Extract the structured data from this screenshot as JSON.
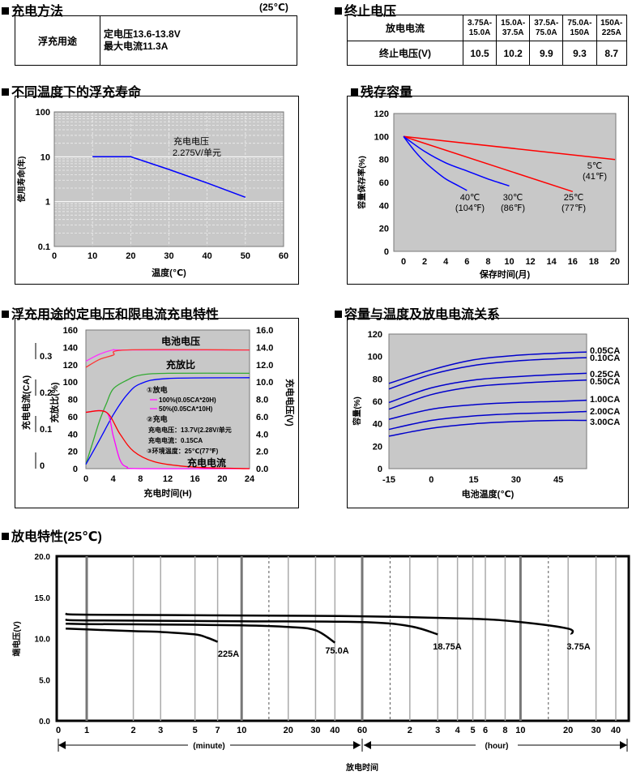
{
  "sections": {
    "charge_method": {
      "title": "充电方法",
      "temp": "(25℃)",
      "row_label": "浮充用途",
      "lines": [
        "定电压13.6-13.8V",
        "最大电流11.3A"
      ]
    },
    "cutoff": {
      "title": "终止电压",
      "row1_label": "放电电流",
      "row2_label": "终止电压(V)",
      "currents": [
        "3.75A-\n15.0A",
        "15.0A-\n37.5A",
        "37.5A-\n75.0A",
        "75.0A-\n150A",
        "150A-\n225A"
      ],
      "voltages": [
        "10.5",
        "10.2",
        "9.9",
        "9.3",
        "8.7"
      ]
    },
    "life": {
      "title": "不同温度下的浮充寿命"
    },
    "retention": {
      "title": "残存容量"
    },
    "charging": {
      "title": "浮充用途的定电压和限电流充电特性"
    },
    "capacity_temp": {
      "title": "容量与温度及放电电流关系"
    },
    "discharge": {
      "title": "放电特性(25℃)"
    }
  },
  "chart_data": [
    {
      "id": "life",
      "type": "line",
      "xlabel": "温度(℃)",
      "ylabel": "使用寿命(年)",
      "xlim": [
        0,
        60
      ],
      "ylim": [
        0.1,
        100
      ],
      "yscale": "log",
      "xticks": [
        "0",
        "10",
        "20",
        "30",
        "40",
        "50",
        "60"
      ],
      "yticks": [
        "0.1",
        "1",
        "10",
        "100"
      ],
      "annotations": [
        "充电电压",
        "2.275V/单元"
      ],
      "series": [
        {
          "color": "#0000ff",
          "x": [
            10,
            20,
            30,
            40,
            50
          ],
          "y": [
            10,
            10,
            5.2,
            2.6,
            1.25
          ]
        }
      ]
    },
    {
      "id": "retention",
      "type": "line",
      "xlabel": "保存时间(月)",
      "ylabel": "容量保存率(%)",
      "xlim": [
        0,
        21
      ],
      "ylim": [
        0,
        120
      ],
      "xticks": [
        "0",
        "2",
        "4",
        "6",
        "8",
        "10",
        "12",
        "14",
        "16",
        "18",
        "20"
      ],
      "yticks": [
        "0",
        "20",
        "40",
        "60",
        "80",
        "100",
        "120"
      ],
      "series": [
        {
          "name": "5℃\n(41℉)",
          "color": "#ff0000",
          "x": [
            0,
            20
          ],
          "y": [
            100,
            80
          ]
        },
        {
          "name": "25℃\n(77℉)",
          "color": "#ff0000",
          "x": [
            0,
            16
          ],
          "y": [
            100,
            52
          ]
        },
        {
          "name": "30℃\n(86℉)",
          "color": "#0000ff",
          "x": [
            0,
            2,
            4,
            6,
            8,
            10
          ],
          "y": [
            100,
            87,
            77,
            70,
            63,
            57
          ]
        },
        {
          "name": "40℃\n(104℉)",
          "color": "#0000ff",
          "x": [
            0,
            1,
            2,
            3,
            4,
            5,
            6
          ],
          "y": [
            100,
            88,
            78,
            70,
            63,
            58,
            53
          ]
        }
      ]
    },
    {
      "id": "charging",
      "type": "line",
      "xlabel": "充电时间(H)",
      "xlim": [
        0,
        24
      ],
      "xticks": [
        "0",
        "4",
        "8",
        "12",
        "16",
        "20",
        "24"
      ],
      "left_axis": {
        "label": "充放比(%)",
        "ticks": [
          "0",
          "20",
          "40",
          "60",
          "80",
          "100",
          "120",
          "140",
          "160"
        ]
      },
      "left_axis2": {
        "label": "充电电流(CA)",
        "ticks": [
          "0",
          "0.1",
          "0.2",
          "0.3"
        ]
      },
      "right_axis": {
        "label": "充电电压(V)",
        "ticks": [
          "0.0",
          "2.0",
          "4.0",
          "6.0",
          "8.0",
          "10.0",
          "12.0",
          "14.0",
          "16.0"
        ]
      },
      "labels": {
        "voltage": "电池电压",
        "ratio": "充放比",
        "current": "充电电流"
      },
      "legend": [
        "①放电",
        "100%(0.05CA*20H)",
        "50%(0.05CA*10H)",
        "②充电",
        "充电电压：13.7V(2.28V/单元",
        "充电电流：0.15CA",
        "③环境温度：25℃(77℉)"
      ],
      "series": [
        {
          "color": "#ff33ff",
          "x": [
            0,
            2,
            4,
            6,
            24
          ],
          "y_pct": [
            124,
            132,
            137,
            137,
            137
          ]
        },
        {
          "color": "#ff3333",
          "x": [
            0,
            2,
            4,
            6,
            24
          ],
          "y_pct": [
            117,
            126,
            131,
            137,
            137
          ]
        },
        {
          "color": "#33aa33",
          "x": [
            0,
            1,
            2,
            3,
            4,
            6,
            8,
            12,
            24
          ],
          "y_pct": [
            5,
            30,
            55,
            75,
            92,
            102,
            108,
            110,
            110
          ]
        },
        {
          "color": "#0000ff",
          "x": [
            0,
            2,
            4,
            6,
            8,
            12,
            24
          ],
          "y_pct": [
            5,
            33,
            62,
            85,
            98,
            104,
            105
          ]
        },
        {
          "color": "#ff00ff",
          "x": [
            0,
            3,
            4,
            5,
            6,
            8,
            24
          ],
          "y_pct": [
            65,
            65,
            38,
            10,
            2,
            0,
            0
          ]
        },
        {
          "color": "#ff0000",
          "x": [
            0,
            3,
            5,
            7,
            10,
            14,
            18,
            24
          ],
          "y_pct": [
            65,
            65,
            40,
            20,
            8,
            3,
            1,
            0
          ]
        }
      ]
    },
    {
      "id": "capacity_temp",
      "type": "line",
      "xlabel": "电池温度(℃)",
      "ylabel": "容量(%)",
      "xlim": [
        -15,
        55
      ],
      "ylim": [
        0,
        120
      ],
      "xticks": [
        "-15",
        "0",
        "15",
        "30",
        "45"
      ],
      "yticks": [
        "0",
        "20",
        "40",
        "60",
        "80",
        "100",
        "120"
      ],
      "series": [
        {
          "name": "0.05CA",
          "color": "#0000cc",
          "x": [
            -15,
            0,
            15,
            30,
            45,
            55
          ],
          "y": [
            76,
            88,
            97,
            101,
            103,
            104
          ]
        },
        {
          "name": "0.10CA",
          "color": "#0000cc",
          "x": [
            -15,
            0,
            15,
            30,
            45,
            55
          ],
          "y": [
            71,
            84,
            92,
            96,
            98,
            99
          ]
        },
        {
          "name": "0.25CA",
          "color": "#0000cc",
          "x": [
            -15,
            0,
            15,
            30,
            45,
            55
          ],
          "y": [
            59,
            72,
            79,
            82,
            84,
            85
          ]
        },
        {
          "name": "0.50CA",
          "color": "#0000cc",
          "x": [
            -15,
            0,
            15,
            30,
            45,
            55
          ],
          "y": [
            53,
            66,
            73,
            76,
            78,
            79
          ]
        },
        {
          "name": "1.00CA",
          "color": "#0000cc",
          "x": [
            -15,
            0,
            15,
            30,
            45,
            55
          ],
          "y": [
            44,
            53,
            57,
            59,
            60,
            61
          ]
        },
        {
          "name": "2.00CA",
          "color": "#0000cc",
          "x": [
            -15,
            0,
            15,
            30,
            45,
            55
          ],
          "y": [
            35,
            43,
            47,
            49,
            50,
            51
          ]
        },
        {
          "name": "3.00CA",
          "color": "#0000cc",
          "x": [
            -15,
            0,
            15,
            30,
            45,
            55
          ],
          "y": [
            29,
            36,
            40,
            42,
            43,
            43
          ]
        }
      ]
    },
    {
      "id": "discharge",
      "type": "line",
      "ylabel": "端电压(V)",
      "xlabel": "放电时间",
      "ylim": [
        0,
        20
      ],
      "yticks": [
        "0.0",
        "5.0",
        "10.0",
        "15.0",
        "20.0"
      ],
      "xscale": "log",
      "x_unit_minute": "(minute)",
      "x_unit_hour": "(hour)",
      "xticks_minutes": [
        "0",
        "1",
        "2",
        "3",
        "5",
        "7",
        "10",
        "20",
        "30",
        "40",
        "60"
      ],
      "xticks_hours": [
        "2",
        "3",
        "4",
        "5",
        "6",
        "8",
        "10",
        "20",
        "30",
        "40"
      ],
      "series": [
        {
          "name": "225A",
          "color": "#000000",
          "t_min": [
            0.3,
            1,
            2,
            3,
            5,
            6,
            7
          ],
          "y": [
            11.2,
            11.1,
            10.9,
            10.8,
            10.5,
            10.1,
            9.6
          ]
        },
        {
          "name": "75.0A",
          "color": "#000000",
          "t_min": [
            0.3,
            1,
            3,
            10,
            20,
            30,
            40
          ],
          "y": [
            11.8,
            11.75,
            11.7,
            11.6,
            11.4,
            11.0,
            9.5
          ]
        },
        {
          "name": "18.75A",
          "color": "#000000",
          "t_min": [
            0.3,
            1,
            10,
            60,
            120,
            180
          ],
          "y": [
            12.3,
            12.2,
            12.1,
            12.0,
            11.5,
            10.5
          ]
        },
        {
          "name": "3.75A",
          "color": "#000000",
          "t_min": [
            0.3,
            1,
            10,
            60,
            300,
            600,
            1200,
            1260
          ],
          "y": [
            13.0,
            12.9,
            12.8,
            12.7,
            12.4,
            12.0,
            11.2,
            10.5
          ]
        }
      ]
    }
  ]
}
